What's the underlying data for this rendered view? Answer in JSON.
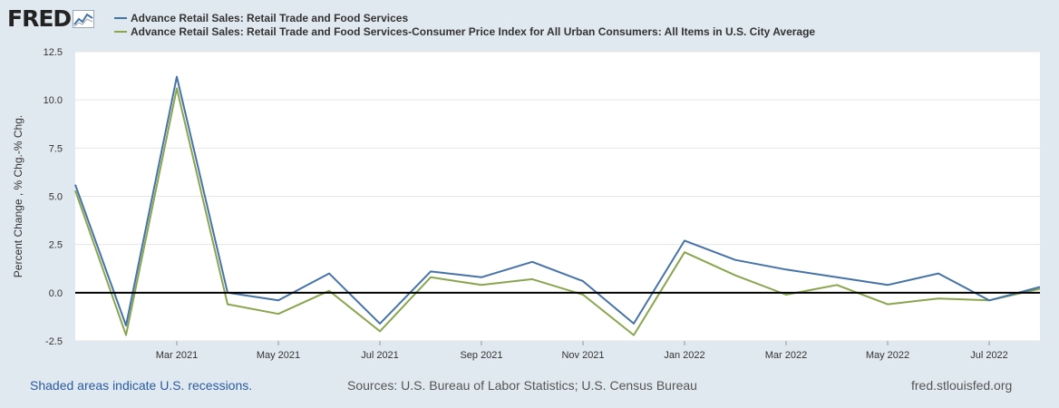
{
  "logo": {
    "text": "FRED",
    "icon": "line-chart-icon"
  },
  "chart_data": {
    "type": "line",
    "x": [
      "Jan 2021",
      "Feb 2021",
      "Mar 2021",
      "Apr 2021",
      "May 2021",
      "Jun 2021",
      "Jul 2021",
      "Aug 2021",
      "Sep 2021",
      "Oct 2021",
      "Nov 2021",
      "Dec 2021",
      "Jan 2022",
      "Feb 2022",
      "Mar 2022",
      "Apr 2022",
      "May 2022",
      "Jun 2022",
      "Jul 2022",
      "Aug 2022"
    ],
    "series": [
      {
        "name": "Advance Retail Sales: Retail Trade and Food Services",
        "color": "#4572a7",
        "values": [
          5.6,
          -1.7,
          11.2,
          0.0,
          -0.4,
          1.0,
          -1.6,
          1.1,
          0.8,
          1.6,
          0.6,
          -1.6,
          2.7,
          1.7,
          1.2,
          0.8,
          0.4,
          1.0,
          -0.4,
          0.3
        ]
      },
      {
        "name": "Advance Retail Sales: Retail Trade and Food Services-Consumer Price Index for All Urban Consumers: All Items in U.S. City Average",
        "color": "#89a54e",
        "values": [
          5.3,
          -2.2,
          10.6,
          -0.6,
          -1.1,
          0.1,
          -2.0,
          0.8,
          0.4,
          0.7,
          -0.1,
          -2.2,
          2.1,
          0.9,
          -0.1,
          0.4,
          -0.6,
          -0.3,
          -0.4,
          0.2
        ]
      }
    ],
    "xticks": [
      "Mar 2021",
      "May 2021",
      "Jul 2021",
      "Sep 2021",
      "Nov 2021",
      "Jan 2022",
      "Mar 2022",
      "May 2022",
      "Jul 2022"
    ],
    "yticks": [
      "12.5",
      "10.0",
      "7.5",
      "5.0",
      "2.5",
      "0.0",
      "-2.5"
    ],
    "ylim": [
      -2.5,
      12.5
    ],
    "ylabel": "Percent Change , % Chg.-% Chg.",
    "zero_line": true,
    "grid": true
  },
  "footer": {
    "recession_note": "Shaded areas indicate U.S. recessions.",
    "sources": "Sources: U.S. Bureau of Labor Statistics; U.S. Census Bureau",
    "site": "fred.stlouisfed.org"
  }
}
